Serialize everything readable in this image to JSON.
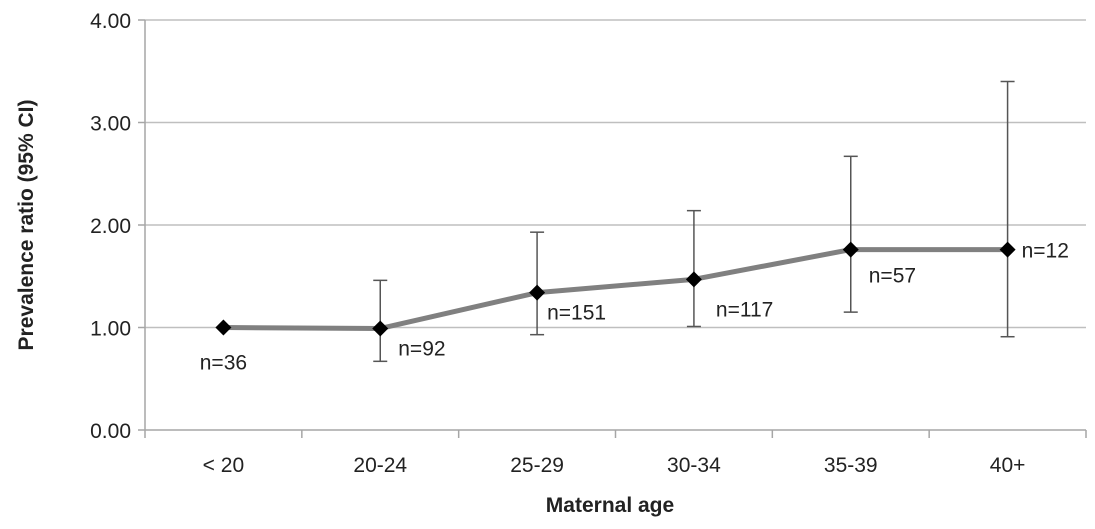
{
  "chart_data": {
    "type": "line",
    "title": "",
    "xlabel": "Maternal age",
    "ylabel": "Prevalence ratio (95% CI)",
    "categories": [
      "< 20",
      "20-24",
      "25-29",
      "30-34",
      "35-39",
      "40+"
    ],
    "ylim": [
      0,
      4
    ],
    "yticks": [
      0,
      1,
      2,
      3,
      4
    ],
    "ytick_labels": [
      "0.00",
      "1.00",
      "2.00",
      "3.00",
      "4.00"
    ],
    "grid": true,
    "legend": "none",
    "series": [
      {
        "values": [
          1.0,
          0.99,
          1.34,
          1.47,
          1.76,
          1.76
        ],
        "ci_lower": [
          1.0,
          0.67,
          0.93,
          1.01,
          1.15,
          0.91
        ],
        "ci_upper": [
          1.0,
          1.46,
          1.93,
          2.14,
          2.67,
          3.4
        ],
        "labels": [
          "n=36",
          "n=92",
          "n=151",
          "n=117",
          "n=57",
          "n=12"
        ],
        "color": "#808080",
        "marker_color": "#000000"
      }
    ],
    "colors": {
      "line": "#808080",
      "marker": "#000000",
      "errorbar": "#555555",
      "grid": "#bfbfbf",
      "axis": "#a6a6a6"
    }
  }
}
